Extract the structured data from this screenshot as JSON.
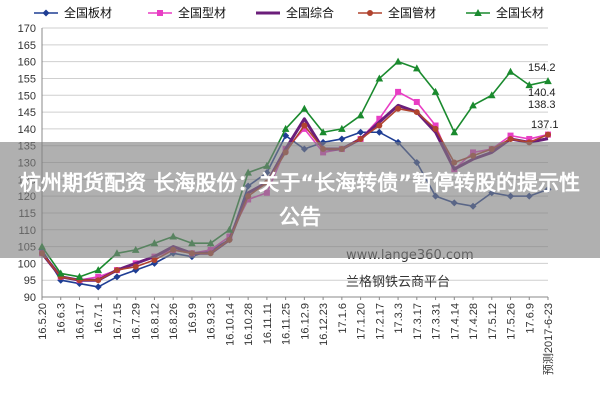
{
  "chart_data": {
    "type": "line",
    "title": "",
    "xlabel": "",
    "ylabel": "",
    "ylim": [
      90,
      170
    ],
    "yticks": [
      90,
      95,
      100,
      105,
      110,
      115,
      120,
      125,
      130,
      135,
      140,
      145,
      150,
      155,
      160,
      165,
      170
    ],
    "grid": true,
    "legend": "top",
    "categories": [
      "16.5.20",
      "16.6.3",
      "16.6.17",
      "16.7.1",
      "16.7.15",
      "16.7.29",
      "16.8.12",
      "16.8.26",
      "16.9.9",
      "16.9.23",
      "16.10.14",
      "16.10.28",
      "16.11.11",
      "16.11.25",
      "16.12.9",
      "16.12.23",
      "17.1.6",
      "17.1.20",
      "17.2.17",
      "17.3.3",
      "17.3.17",
      "17.3.31",
      "17.4.14",
      "17.4.28",
      "17.5.12",
      "17.5.26",
      "17.6.9",
      "预测2017-6-23"
    ],
    "series": [
      {
        "name": "全国板材",
        "color": "#1f3e94",
        "marker": "diamond",
        "values": [
          104,
          95,
          94,
          93,
          96,
          98,
          100,
          103,
          102,
          104,
          107,
          123,
          127,
          138,
          134,
          136,
          137,
          139,
          139,
          136,
          130,
          120,
          118,
          117,
          121,
          120,
          120,
          122
        ]
      },
      {
        "name": "全国型材",
        "color": "#e83ec4",
        "marker": "square",
        "values": [
          103,
          96,
          95,
          96,
          98,
          100,
          102,
          104,
          103,
          104,
          108,
          119,
          121,
          134,
          140,
          133,
          134,
          137,
          143,
          151,
          148,
          141,
          128,
          133,
          134,
          138,
          137,
          138.3
        ]
      },
      {
        "name": "全国综合",
        "color": "#6b1e7a",
        "marker": "none",
        "values": [
          103,
          96,
          95,
          95,
          98,
          100,
          102,
          105,
          103,
          103,
          107,
          121,
          124,
          134,
          143,
          134,
          134,
          137,
          142,
          147,
          145,
          139,
          128,
          131,
          133,
          137,
          136,
          137.1
        ]
      },
      {
        "name": "全国管材",
        "color": "#b0432e",
        "marker": "circle",
        "values": [
          103,
          96,
          95,
          95,
          98,
          99,
          101,
          104,
          103,
          103,
          107,
          120,
          124,
          133,
          141,
          134,
          134,
          137,
          141,
          146,
          145,
          140,
          130,
          132,
          134,
          137,
          136,
          138.3
        ]
      },
      {
        "name": "全国长材",
        "color": "#1a8a2e",
        "marker": "triangle",
        "values": [
          105,
          97,
          96,
          98,
          103,
          104,
          106,
          108,
          106,
          106,
          110,
          127,
          129,
          140,
          146,
          139,
          140,
          144,
          155,
          160,
          158,
          151,
          139,
          147,
          150,
          157,
          153,
          154.2
        ]
      }
    ],
    "end_labels": [
      "154.2",
      "140.4",
      "138.3",
      "137.1"
    ]
  },
  "overlay": {
    "text": "杭州期货配资 长海股份：关于“长海转债”暂停转股的提示性公告"
  },
  "watermark": {
    "url": "www.lange360.com",
    "name": "兰格钢铁云商平台"
  }
}
